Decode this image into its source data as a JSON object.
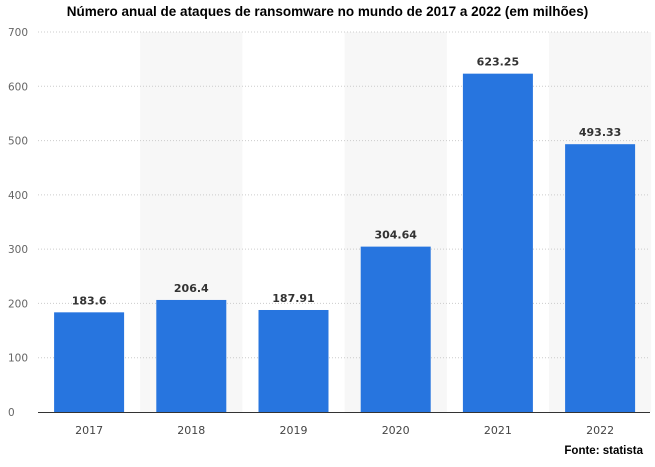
{
  "chart_data": {
    "type": "bar",
    "title": "Número anual de ataques de ransomware no mundo de 2017 a 2022 (em milhões)",
    "categories": [
      "2017",
      "2018",
      "2019",
      "2020",
      "2021",
      "2022"
    ],
    "values": [
      183.6,
      206.4,
      187.91,
      304.64,
      623.25,
      493.33
    ],
    "value_labels": [
      "183.6",
      "206.4",
      "187.91",
      "304.64",
      "623.25",
      "493.33"
    ],
    "yticks": [
      "0",
      "100",
      "200",
      "300",
      "400",
      "500",
      "600",
      "700"
    ],
    "ylim": [
      0,
      700
    ],
    "xlabel": "",
    "ylabel": "",
    "grid": true,
    "bar_color": "#2775DF",
    "source": "Fonte: statista"
  }
}
